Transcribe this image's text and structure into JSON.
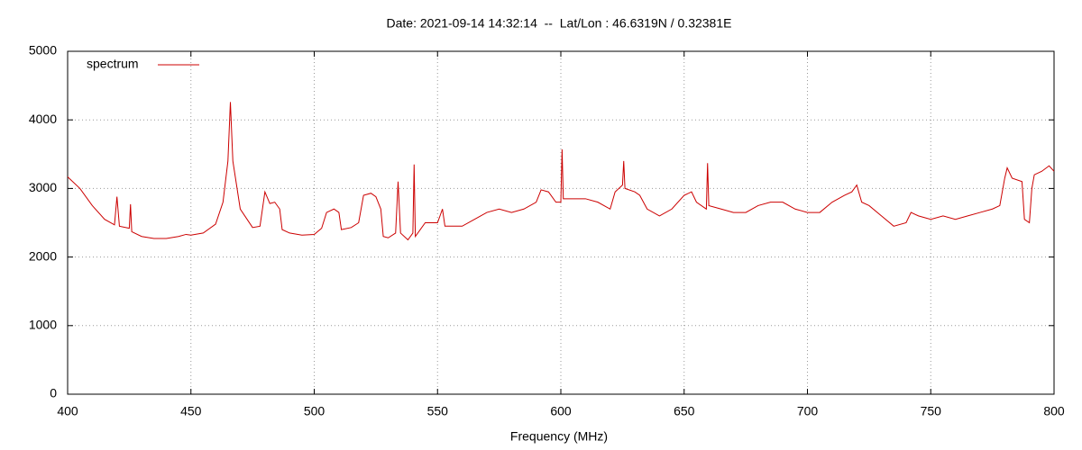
{
  "chart_data": {
    "type": "line",
    "title": "Date: 2021-09-14 14:32:14  --  Lat/Lon : 46.6319N / 0.32381E",
    "x_label": "Frequency (MHz)",
    "x": [
      400,
      405,
      410,
      415,
      419,
      420,
      421,
      425,
      425.5,
      426,
      430,
      435,
      440,
      445,
      448,
      450,
      455,
      460,
      463,
      465,
      466,
      467,
      470,
      475,
      478,
      480,
      482,
      484,
      486,
      487,
      490,
      495,
      500,
      503,
      505,
      508,
      510,
      511,
      515,
      518,
      520,
      523,
      525,
      527,
      528,
      530,
      533,
      534,
      535,
      538,
      540,
      540.5,
      541,
      545,
      550,
      552,
      553,
      555,
      560,
      565,
      570,
      575,
      580,
      585,
      590,
      592,
      595,
      598,
      600,
      600.5,
      601,
      605,
      610,
      615,
      620,
      622,
      625,
      625.5,
      626,
      630,
      632,
      635,
      640,
      645,
      650,
      653,
      655,
      659,
      659.5,
      660,
      665,
      670,
      675,
      680,
      685,
      690,
      695,
      700,
      705,
      710,
      715,
      718,
      720,
      722,
      725,
      730,
      735,
      740,
      742,
      745,
      750,
      755,
      760,
      765,
      770,
      775,
      778,
      780,
      781,
      783,
      787,
      788,
      790,
      791,
      792,
      795,
      798,
      800
    ],
    "series": [
      {
        "name": "spectrum",
        "color": "#cc0000",
        "values": [
          3170,
          3000,
          2750,
          2550,
          2470,
          2880,
          2450,
          2420,
          2770,
          2370,
          2300,
          2270,
          2270,
          2300,
          2330,
          2320,
          2350,
          2480,
          2800,
          3400,
          4260,
          3400,
          2700,
          2430,
          2450,
          2950,
          2780,
          2800,
          2700,
          2400,
          2350,
          2320,
          2330,
          2420,
          2650,
          2700,
          2650,
          2400,
          2430,
          2500,
          2900,
          2930,
          2880,
          2700,
          2300,
          2280,
          2350,
          3100,
          2350,
          2250,
          2350,
          3350,
          2300,
          2500,
          2500,
          2700,
          2450,
          2450,
          2450,
          2550,
          2650,
          2700,
          2650,
          2700,
          2800,
          2980,
          2950,
          2800,
          2800,
          3570,
          2850,
          2850,
          2850,
          2800,
          2700,
          2950,
          3050,
          3400,
          3000,
          2950,
          2900,
          2700,
          2600,
          2700,
          2900,
          2950,
          2800,
          2700,
          3370,
          2750,
          2700,
          2650,
          2650,
          2750,
          2800,
          2800,
          2700,
          2650,
          2650,
          2800,
          2900,
          2950,
          3050,
          2800,
          2750,
          2600,
          2450,
          2500,
          2650,
          2600,
          2550,
          2600,
          2550,
          2600,
          2650,
          2700,
          2750,
          3150,
          3300,
          3150,
          3100,
          2550,
          2500,
          3000,
          3200,
          3250,
          3330,
          3250
        ]
      }
    ],
    "xlim": [
      400,
      800
    ],
    "xticks": [
      400,
      450,
      500,
      550,
      600,
      650,
      700,
      750,
      800
    ],
    "ylim": [
      0,
      5000
    ],
    "yticks": [
      0,
      1000,
      2000,
      3000,
      4000,
      5000
    ],
    "grid": true,
    "legend": "top-left"
  }
}
